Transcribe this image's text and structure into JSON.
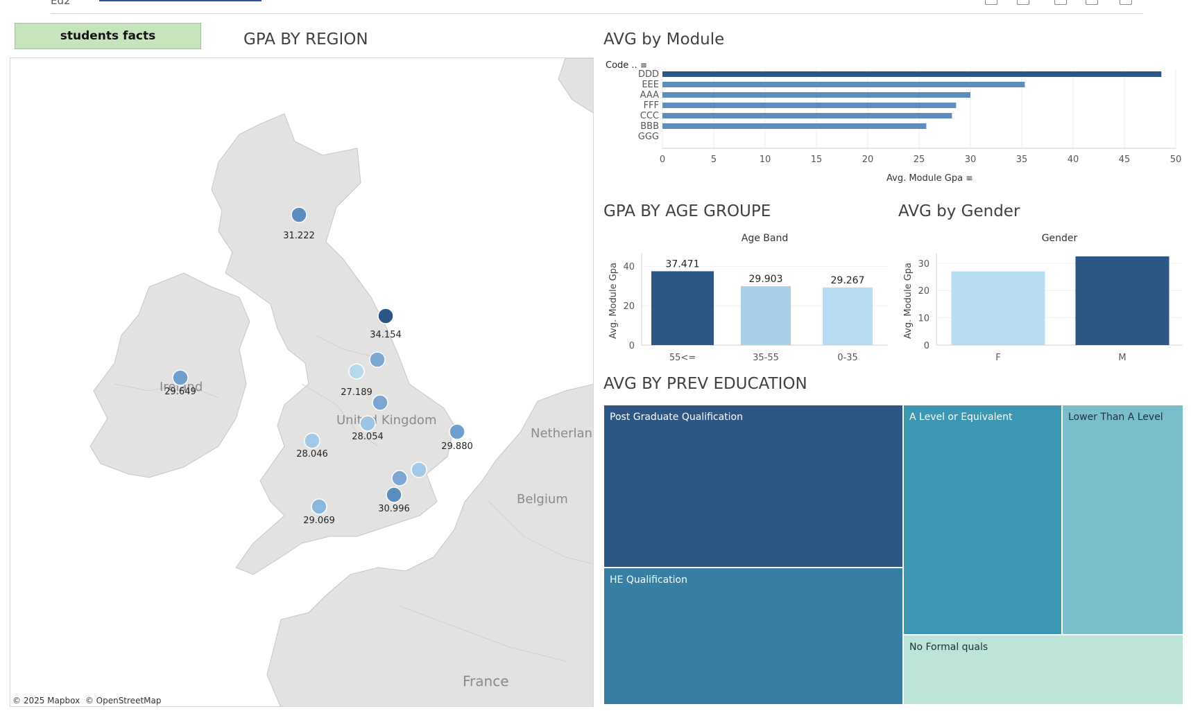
{
  "header": {
    "partial_text": "Ed2"
  },
  "facts_button": "students facts",
  "map": {
    "title": "GPA BY REGION",
    "attribution": [
      "© 2025 Mapbox",
      "© OpenStreetMap"
    ],
    "place_labels": [
      "Ireland",
      "United Kingdom",
      "Netherlands",
      "Belgium",
      "France"
    ],
    "points": [
      {
        "label": "31.222",
        "color": "#5b8ebf"
      },
      {
        "label": "34.154",
        "color": "#2c5784"
      },
      {
        "label": "",
        "color": "#7ba7d2"
      },
      {
        "label": "27.189",
        "color": "#b6d9ee"
      },
      {
        "label": "",
        "color": "#7ba7d2"
      },
      {
        "label": "28.054",
        "color": "#9cc4e4"
      },
      {
        "label": "29.649",
        "color": "#6f9fce"
      },
      {
        "label": "29.880",
        "color": "#6f9fce"
      },
      {
        "label": "28.046",
        "color": "#a2c9e8"
      },
      {
        "label": "",
        "color": "#a2c9e8"
      },
      {
        "label": "",
        "color": "#7ba7d2"
      },
      {
        "label": "30.996",
        "color": "#5b8ebf"
      },
      {
        "label": "29.069",
        "color": "#8ab7de"
      }
    ]
  },
  "module_chart": {
    "title": "AVG by Module",
    "header_label": "Code ..",
    "axis_label": "Avg. Module Gpa",
    "chart_data": {
      "type": "bar",
      "orientation": "horizontal",
      "categories": [
        "DDD",
        "EEE",
        "AAA",
        "FFF",
        "CCC",
        "BBB",
        "GGG"
      ],
      "values": [
        48.6,
        35.3,
        30.0,
        28.6,
        28.2,
        25.7,
        0
      ],
      "xlim": [
        0,
        50
      ],
      "ticks": [
        0,
        5,
        10,
        15,
        20,
        25,
        30,
        35,
        40,
        45,
        50
      ],
      "xlabel": "Avg. Module Gpa",
      "colors": [
        "#2c5784",
        "#5b8ebf",
        "#5b8ebf",
        "#5b8ebf",
        "#5b8ebf",
        "#5b8ebf",
        "#5b8ebf"
      ]
    }
  },
  "age_chart": {
    "title": "GPA BY AGE GROUPE",
    "chart_data": {
      "type": "bar",
      "title": "Age Band",
      "categories": [
        "55<=",
        "35-55",
        "0-35"
      ],
      "values": [
        37.471,
        29.903,
        29.267
      ],
      "data_labels": [
        "37.471",
        "29.903",
        "29.267"
      ],
      "ylabel": "Avg. Module Gpa",
      "ylim": [
        0,
        45
      ],
      "ticks": [
        0,
        20,
        40
      ],
      "colors": [
        "#2c5784",
        "#a9d0ea",
        "#b6dcf1"
      ]
    }
  },
  "gender_chart": {
    "title": "AVG by Gender",
    "chart_data": {
      "type": "bar",
      "title": "Gender",
      "categories": [
        "F",
        "M"
      ],
      "values": [
        27.0,
        32.5
      ],
      "ylabel": "Avg. Module Gpa",
      "ylim": [
        0,
        32.5
      ],
      "ticks": [
        0,
        10,
        20,
        30
      ],
      "colors": [
        "#b6dcf1",
        "#2c5784"
      ]
    }
  },
  "edu_chart": {
    "title": "AVG BY PREV EDUCATION",
    "chart_data": {
      "type": "treemap",
      "items": [
        {
          "label": "Post Graduate Qualification",
          "color": "#2c5784"
        },
        {
          "label": "HE Qualification",
          "color": "#367fa3"
        },
        {
          "label": "A Level or Equivalent",
          "color": "#3c97b2"
        },
        {
          "label": "Lower Than A Level",
          "color": "#79bec9"
        },
        {
          "label": "No Formal quals",
          "color": "#bce4d8"
        }
      ]
    }
  }
}
